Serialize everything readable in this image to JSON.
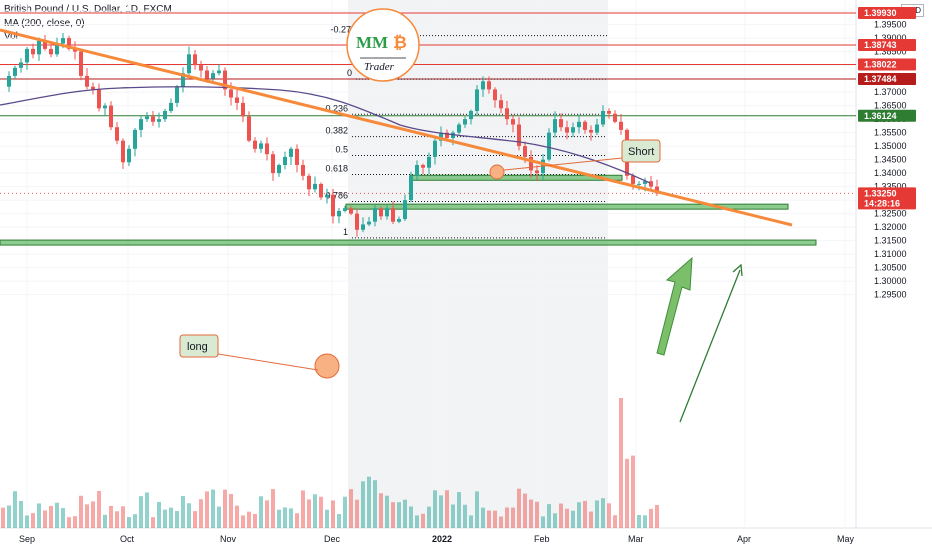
{
  "header": {
    "symbol_line": "British Pound / U.S. Dollar, 1D, FXCM",
    "ma_line": "MA (200, close, 0)",
    "vol_line": "Vol",
    "currency": "USD"
  },
  "logo": {
    "letters": "MM",
    "btc_glyph": "₿",
    "word": "Trader"
  },
  "chart_data": {
    "type": "candlestick",
    "title": "British Pound / U.S. Dollar, 1D, FXCM",
    "x_ticks": [
      "Sep",
      "Oct",
      "Nov",
      "Dec",
      "2022",
      "Feb",
      "Mar",
      "Apr",
      "May"
    ],
    "y_ticks": [
      "1.40000",
      "1.39500",
      "1.39000",
      "1.38500",
      "1.38000",
      "1.37500",
      "1.37000",
      "1.36500",
      "1.36000",
      "1.35500",
      "1.35000",
      "1.34500",
      "1.34000",
      "1.33500",
      "1.33000",
      "1.32500",
      "1.32000",
      "1.31500",
      "1.31000",
      "1.30500",
      "1.30000",
      "1.29500"
    ],
    "ylim": [
      1.292,
      1.402
    ],
    "price_levels": [
      {
        "label": "1.39930",
        "value": 1.3993,
        "color": "#e53935"
      },
      {
        "label": "1.38743",
        "value": 1.38743,
        "color": "#e53935"
      },
      {
        "label": "1.38022",
        "value": 1.38022,
        "color": "#e53935"
      },
      {
        "label": "1.37484",
        "value": 1.37484,
        "color": "#b71c1c"
      },
      {
        "label": "1.36124",
        "value": 1.36124,
        "color": "#2e7d32"
      }
    ],
    "last_price": {
      "label": "1.33250",
      "value": 1.3325,
      "countdown": "14:28:16",
      "color": "#e53935"
    },
    "fib_levels": [
      {
        "label": "-0.272",
        "value": 1.3909
      },
      {
        "label": "0",
        "value": 1.3748
      },
      {
        "label": "0.236",
        "value": 1.3618
      },
      {
        "label": "0.382",
        "value": 1.3535
      },
      {
        "label": "0.5",
        "value": 1.3465
      },
      {
        "label": "0.618",
        "value": 1.3395
      },
      {
        "label": "0.786",
        "value": 1.3295
      },
      {
        "label": "1",
        "value": 1.316
      }
    ],
    "annotations": {
      "short": "Short",
      "long": "long"
    },
    "zones": [
      {
        "y_from": 1.3378,
        "y_to": 1.3392
      },
      {
        "y_from": 1.3278,
        "y_to": 1.3285
      },
      {
        "y_from": 1.3136,
        "y_to": 1.3152
      }
    ]
  },
  "colors": {
    "up": "#26a69a",
    "down": "#ef5350",
    "trend": "#f6893a",
    "ma": "#5b4a8b",
    "zone": "#66bb6a"
  }
}
